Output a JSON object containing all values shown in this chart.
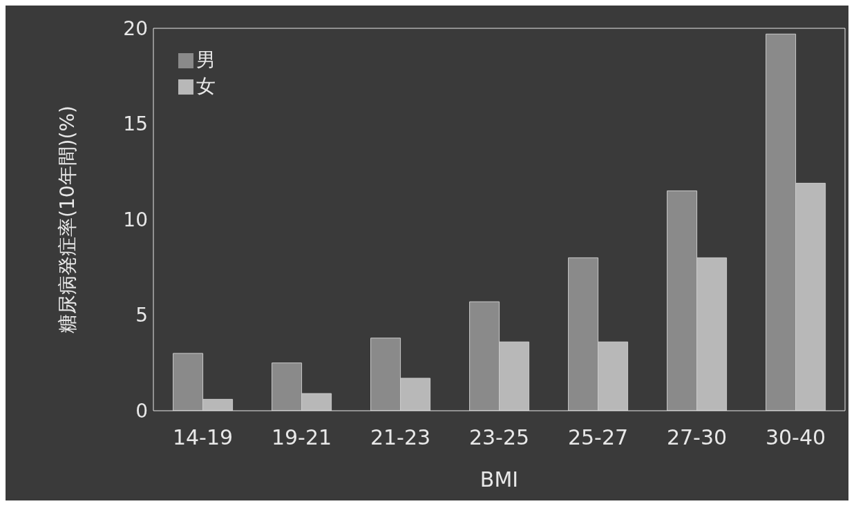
{
  "chart_data": {
    "type": "bar",
    "xlabel": "BMI",
    "ylabel": "糖尿病発症率(10年間)(%)",
    "categories": [
      "14-19",
      "19-21",
      "21-23",
      "23-25",
      "25-27",
      "27-30",
      "30-40"
    ],
    "series": [
      {
        "name": "男",
        "color": "#8a8a8a",
        "values": [
          3.0,
          2.5,
          3.8,
          5.7,
          8.0,
          11.5,
          19.7
        ]
      },
      {
        "name": "女",
        "color": "#b8b8b8",
        "values": [
          0.6,
          0.9,
          1.7,
          3.6,
          3.6,
          8.0,
          11.9
        ]
      }
    ],
    "ylim": [
      0,
      20
    ],
    "yticks": [
      0,
      5,
      10,
      15,
      20
    ],
    "grid": false,
    "legend": "top left"
  }
}
